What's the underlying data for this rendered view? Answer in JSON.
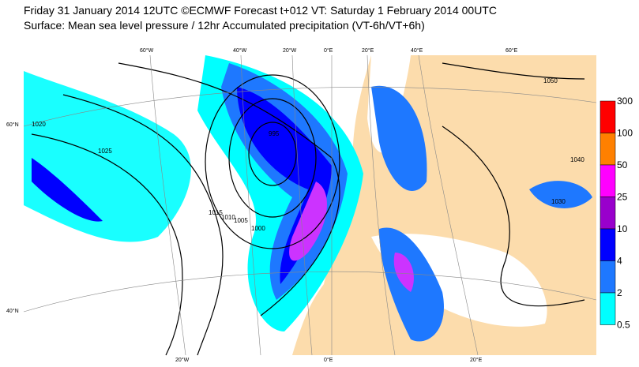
{
  "header": {
    "title": "Friday 31 January 2014 12UTC ©ECMWF Forecast t+012 VT: Saturday 1 February 2014 00UTC",
    "subtitle": "Surface: Mean sea level pressure / 12hr Accumulated precipitation (VT-6h/VT+6h)"
  },
  "map": {
    "lon_labels_top": [
      "60°W",
      "40°W",
      "20°W",
      "0°E",
      "20°E",
      "40°E",
      "60°E"
    ],
    "lon_labels_bottom": [
      "20°W",
      "0°E",
      "20°E"
    ],
    "lat_labels": [
      "60°N",
      "40°N"
    ],
    "isobar_labels": [
      "995",
      "1000",
      "1005",
      "1010",
      "1015",
      "1020",
      "1025",
      "1030",
      "1040",
      "1050"
    ]
  },
  "legend": {
    "levels": [
      300,
      100,
      50,
      25,
      10,
      4,
      2,
      0.5
    ],
    "colors": [
      "#ff0000",
      "#ff8000",
      "#ff00ff",
      "#9900cc",
      "#0000ff",
      "#1e78ff",
      "#00ffff"
    ]
  }
}
